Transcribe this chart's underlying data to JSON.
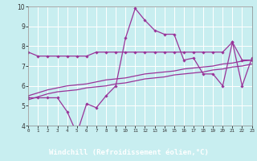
{
  "xlabel": "Windchill (Refroidissement éolien,°C)",
  "background_color": "#c8eef0",
  "line_color": "#993399",
  "grid_color": "#ffffff",
  "xlabel_bg": "#7030a0",
  "xlabel_fg": "#ffffff",
  "xlim": [
    0,
    23
  ],
  "ylim": [
    4,
    10
  ],
  "xticks": [
    0,
    1,
    2,
    3,
    4,
    5,
    6,
    7,
    8,
    9,
    10,
    11,
    12,
    13,
    14,
    15,
    16,
    17,
    18,
    19,
    20,
    21,
    22,
    23
  ],
  "yticks": [
    4,
    5,
    6,
    7,
    8,
    9,
    10
  ],
  "series": [
    {
      "y": [
        7.7,
        7.5,
        7.5,
        7.5,
        7.5,
        7.5,
        7.5,
        7.7,
        7.7,
        7.7,
        7.7,
        7.7,
        7.7,
        7.7,
        7.7,
        7.7,
        7.7,
        7.7,
        7.7,
        7.7,
        7.7,
        8.2,
        7.3,
        7.3
      ],
      "marker": true
    },
    {
      "y": [
        5.4,
        5.4,
        5.4,
        5.4,
        4.7,
        3.6,
        5.1,
        4.9,
        5.5,
        6.0,
        8.4,
        9.9,
        9.3,
        8.8,
        8.6,
        8.6,
        7.3,
        7.4,
        6.6,
        6.6,
        6.0,
        8.2,
        6.0,
        7.4
      ],
      "marker": true
    },
    {
      "y": [
        5.5,
        5.65,
        5.8,
        5.9,
        6.0,
        6.05,
        6.1,
        6.2,
        6.3,
        6.35,
        6.4,
        6.5,
        6.6,
        6.65,
        6.7,
        6.75,
        6.85,
        6.9,
        6.95,
        7.0,
        7.1,
        7.15,
        7.25,
        7.3
      ],
      "marker": false
    },
    {
      "y": [
        5.3,
        5.45,
        5.6,
        5.7,
        5.75,
        5.8,
        5.9,
        5.95,
        6.0,
        6.1,
        6.15,
        6.25,
        6.35,
        6.4,
        6.45,
        6.55,
        6.6,
        6.65,
        6.7,
        6.8,
        6.85,
        6.95,
        7.0,
        7.1
      ],
      "marker": false
    }
  ]
}
